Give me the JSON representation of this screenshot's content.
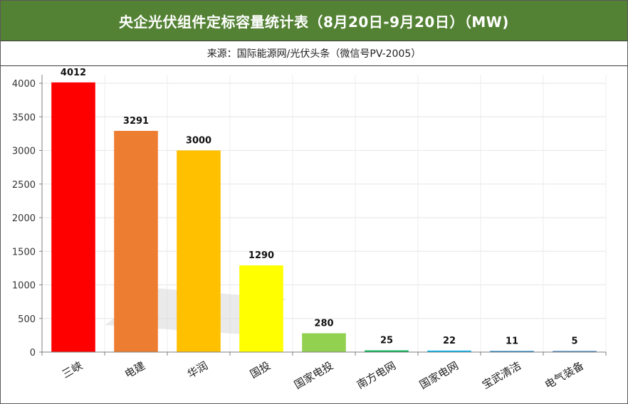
{
  "header": {
    "title": "央企光伏组件定标容量统计表（8月20日-9月20日）（MW)",
    "source": "来源：国际能源网/光伏头条（微信号PV-2005）"
  },
  "chart_data": {
    "type": "bar",
    "title": "央企光伏组件定标容量统计表（8月20日-9月20日）（MW)",
    "subtitle": "来源：国际能源网/光伏头条（微信号PV-2005）",
    "xlabel": "",
    "ylabel": "",
    "categories": [
      "三峡",
      "电建",
      "华润",
      "国投",
      "国家电投",
      "南方电网",
      "国家电网",
      "宝武清洁",
      "电气装备"
    ],
    "values": [
      4012,
      3291,
      3000,
      1290,
      280,
      25,
      22,
      11,
      5
    ],
    "data_labels": [
      "4012",
      "3291",
      "3000",
      "1290",
      "280",
      "25",
      "22",
      "11",
      "5"
    ],
    "colors": [
      "#ff0000",
      "#ed7d31",
      "#ffc000",
      "#ffff00",
      "#92d050",
      "#00b050",
      "#00b0f0",
      "#0070c0",
      "#2e75b6"
    ],
    "ylim": [
      0,
      4000
    ],
    "yticks": [
      0,
      500,
      1000,
      1500,
      2000,
      2500,
      3000,
      3500,
      4000
    ],
    "ytick_labels": [
      "0",
      "500",
      "1000",
      "1500",
      "2000",
      "2500",
      "3000",
      "3500",
      "4000"
    ],
    "grid": true,
    "legend": "none"
  }
}
